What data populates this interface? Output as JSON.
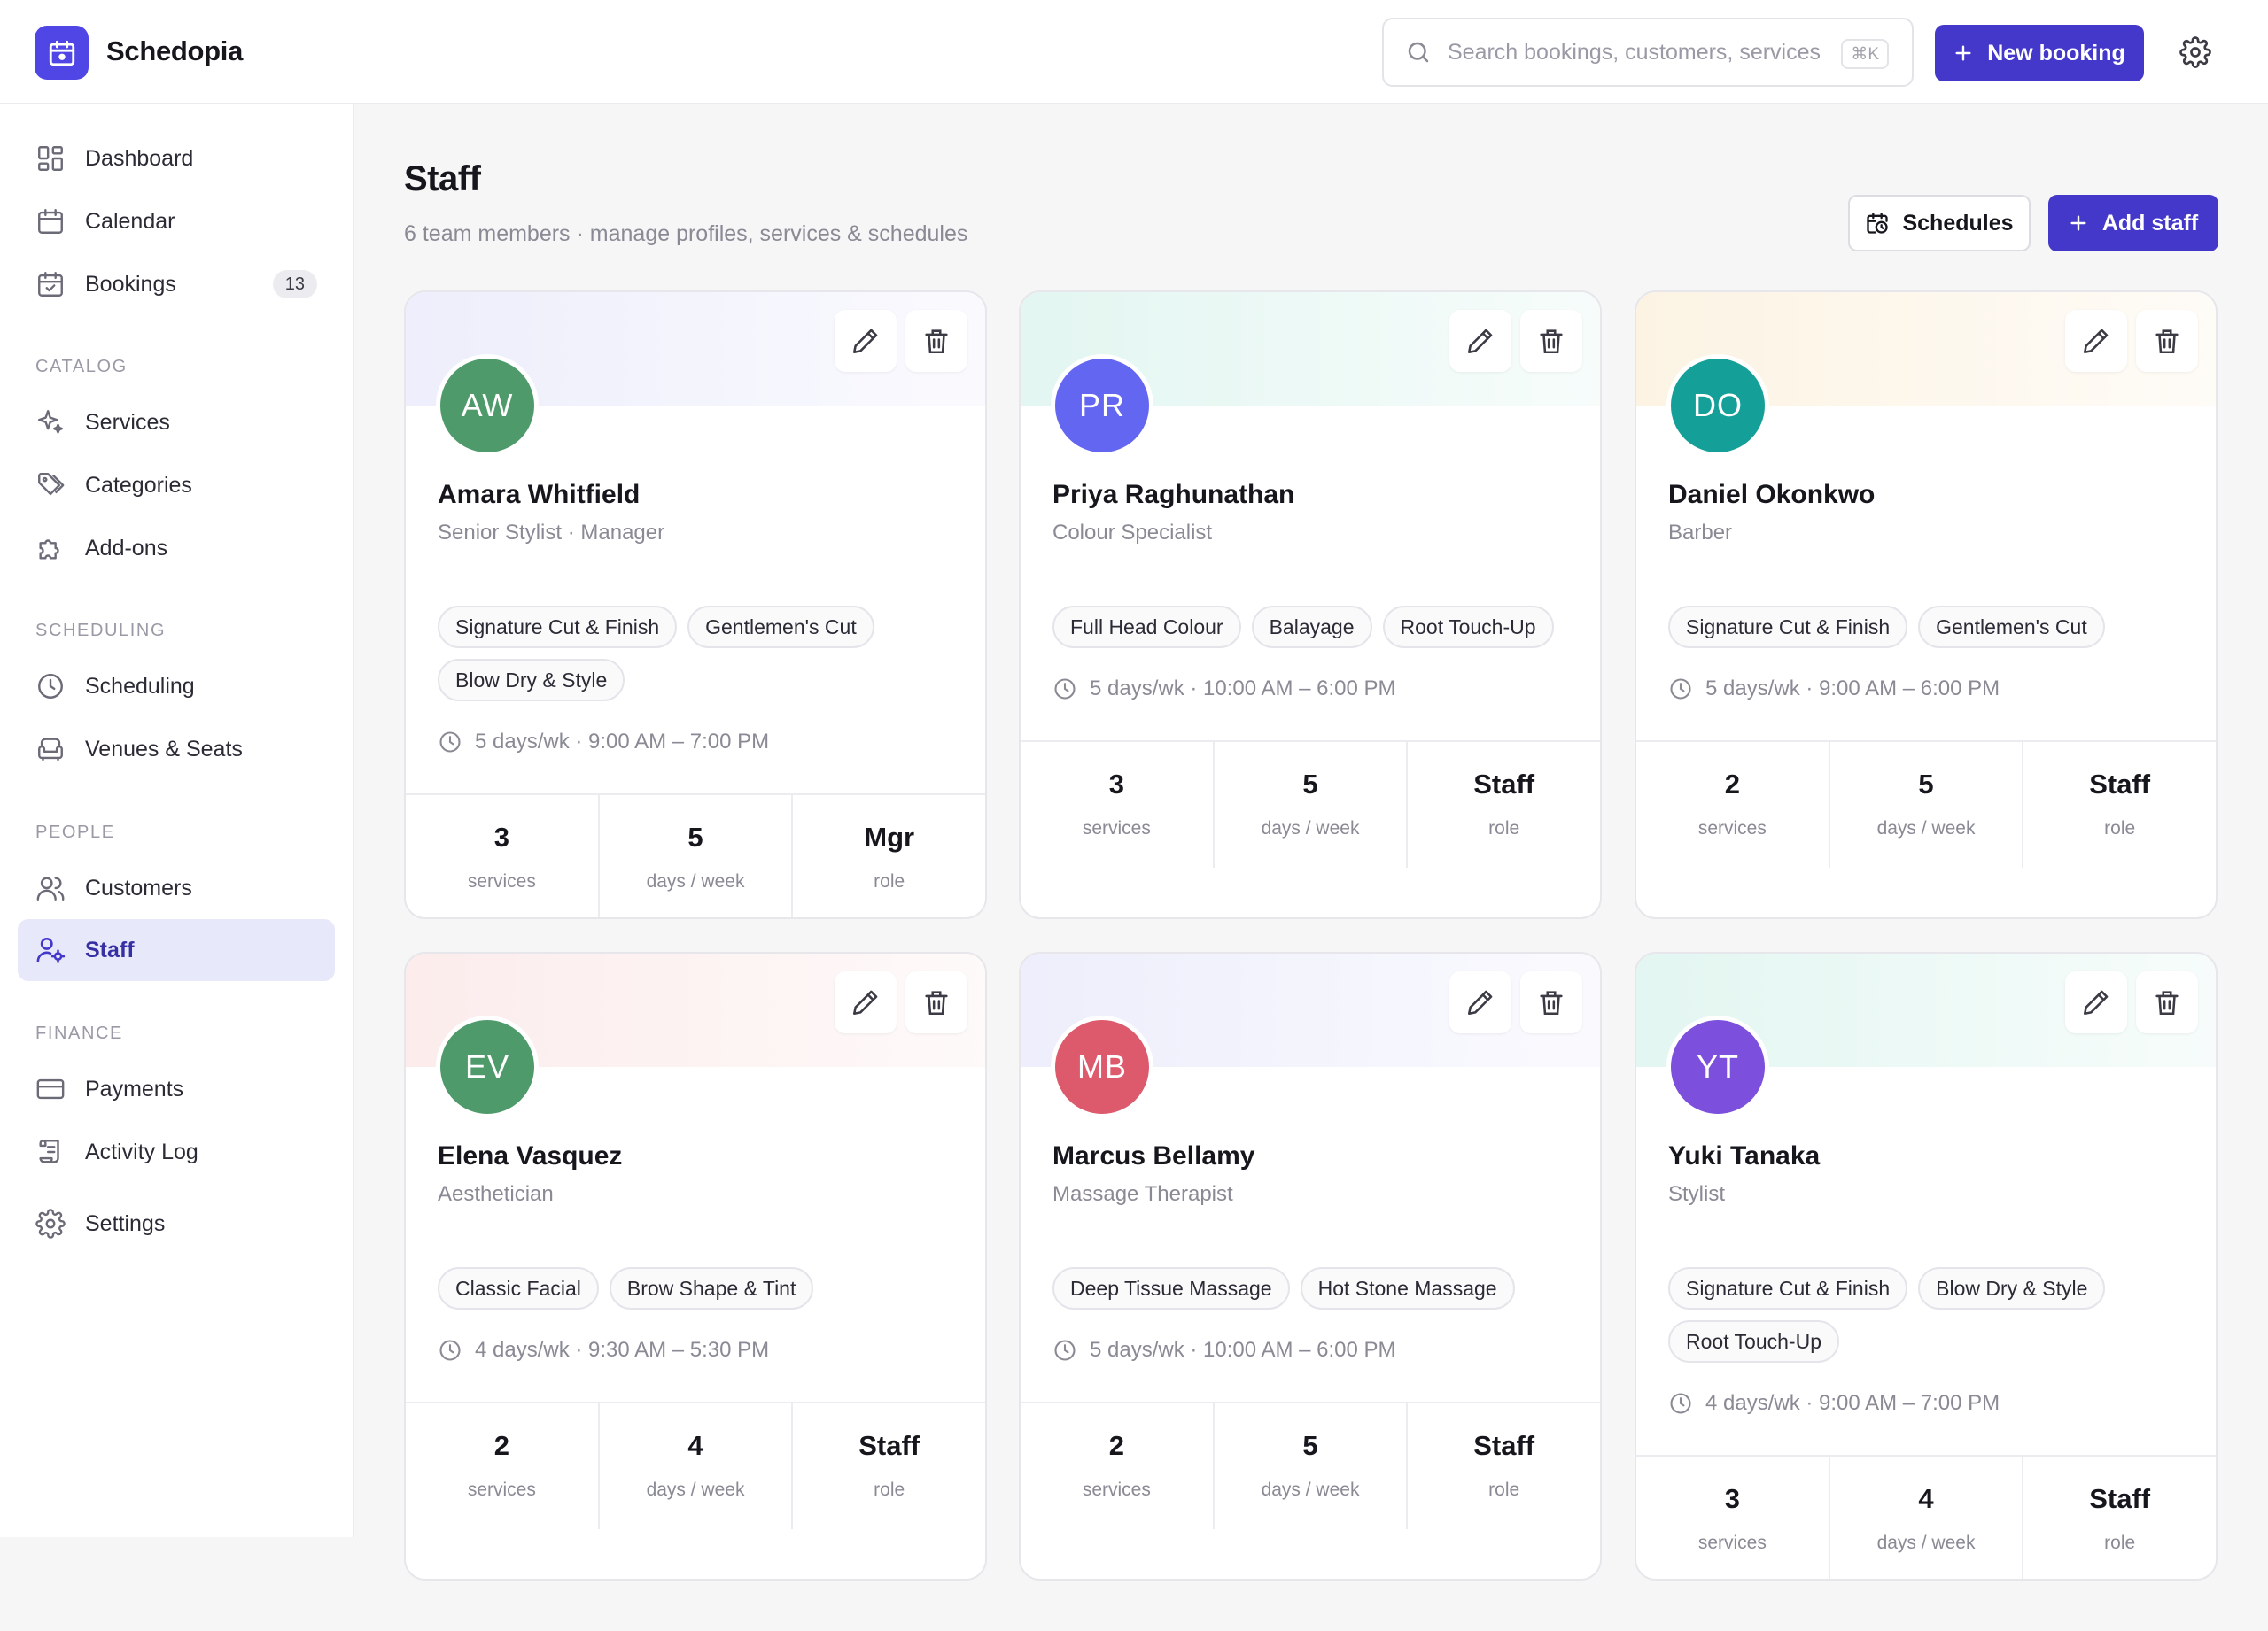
{
  "app": {
    "name": "Schedopia"
  },
  "header": {
    "search_placeholder": "Search bookings, customers, services",
    "search_shortcut": "⌘K",
    "new_booking_label": "New booking"
  },
  "sidebar": {
    "items": [
      {
        "label": "Dashboard",
        "icon": "dashboard-icon"
      },
      {
        "label": "Calendar",
        "icon": "calendar-icon"
      },
      {
        "label": "Bookings",
        "icon": "calendar-check-icon",
        "badge": "13"
      }
    ],
    "catalog_heading": "CATALOG",
    "catalog": [
      {
        "label": "Services",
        "icon": "sparkle-icon"
      },
      {
        "label": "Categories",
        "icon": "tag-icon"
      },
      {
        "label": "Add-ons",
        "icon": "puzzle-icon"
      }
    ],
    "scheduling_heading": "SCHEDULING",
    "scheduling": [
      {
        "label": "Scheduling",
        "icon": "clock-icon"
      },
      {
        "label": "Venues & Seats",
        "icon": "armchair-icon"
      }
    ],
    "people_heading": "PEOPLE",
    "people": [
      {
        "label": "Customers",
        "icon": "users-icon"
      },
      {
        "label": "Staff",
        "icon": "user-cog-icon",
        "active": true
      }
    ],
    "finance_heading": "FINANCE",
    "finance": [
      {
        "label": "Payments",
        "icon": "credit-card-icon"
      },
      {
        "label": "Activity Log",
        "icon": "scroll-icon"
      }
    ],
    "settings": {
      "label": "Settings",
      "icon": "gear-icon"
    }
  },
  "page": {
    "title": "Staff",
    "subtitle": "6 team members · manage profiles, services & schedules",
    "schedules_label": "Schedules",
    "add_staff_label": "Add staff"
  },
  "staff": [
    {
      "initials": "AW",
      "name": "Amara Whitfield",
      "role": "Senior Stylist · Manager",
      "avatar_color": "#4f9a6a",
      "band_color": "#eeeefc",
      "services": [
        "Signature Cut & Finish",
        "Gentlemen's Cut",
        "Blow Dry & Style"
      ],
      "hours": "5 days/wk · 9:00 AM – 7:00 PM",
      "stats": {
        "services": "3",
        "services_label": "services",
        "days": "5",
        "days_label": "days / week",
        "role": "Mgr",
        "role_label": "role"
      }
    },
    {
      "initials": "PR",
      "name": "Priya Raghunathan",
      "role": "Colour Specialist",
      "avatar_color": "#6366f1",
      "band_color": "#e3f6f1",
      "services": [
        "Full Head Colour",
        "Balayage",
        "Root Touch-Up"
      ],
      "hours": "5 days/wk · 10:00 AM – 6:00 PM",
      "stats": {
        "services": "3",
        "services_label": "services",
        "days": "5",
        "days_label": "days / week",
        "role": "Staff",
        "role_label": "role"
      }
    },
    {
      "initials": "DO",
      "name": "Daniel Okonkwo",
      "role": "Barber",
      "avatar_color": "#14a098",
      "band_color": "#fcf3e3",
      "services": [
        "Signature Cut & Finish",
        "Gentlemen's Cut"
      ],
      "hours": "5 days/wk · 9:00 AM – 6:00 PM",
      "stats": {
        "services": "2",
        "services_label": "services",
        "days": "5",
        "days_label": "days / week",
        "role": "Staff",
        "role_label": "role"
      }
    },
    {
      "initials": "EV",
      "name": "Elena Vasquez",
      "role": "Aesthetician",
      "avatar_color": "#4f9a6a",
      "band_color": "#fcecec",
      "services": [
        "Classic Facial",
        "Brow Shape & Tint"
      ],
      "hours": "4 days/wk · 9:30 AM – 5:30 PM",
      "stats": {
        "services": "2",
        "services_label": "services",
        "days": "4",
        "days_label": "days / week",
        "role": "Staff",
        "role_label": "role"
      }
    },
    {
      "initials": "MB",
      "name": "Marcus Bellamy",
      "role": "Massage Therapist",
      "avatar_color": "#dc5a6b",
      "band_color": "#eeeefc",
      "services": [
        "Deep Tissue Massage",
        "Hot Stone Massage"
      ],
      "hours": "5 days/wk · 10:00 AM – 6:00 PM",
      "stats": {
        "services": "2",
        "services_label": "services",
        "days": "5",
        "days_label": "days / week",
        "role": "Staff",
        "role_label": "role"
      }
    },
    {
      "initials": "YT",
      "name": "Yuki Tanaka",
      "role": "Stylist",
      "avatar_color": "#7c4fdc",
      "band_color": "#e3f6f1",
      "services": [
        "Signature Cut & Finish",
        "Blow Dry & Style",
        "Root Touch-Up"
      ],
      "hours": "4 days/wk · 9:00 AM – 7:00 PM",
      "stats": {
        "services": "3",
        "services_label": "services",
        "days": "4",
        "days_label": "days / week",
        "role": "Staff",
        "role_label": "role"
      }
    }
  ]
}
